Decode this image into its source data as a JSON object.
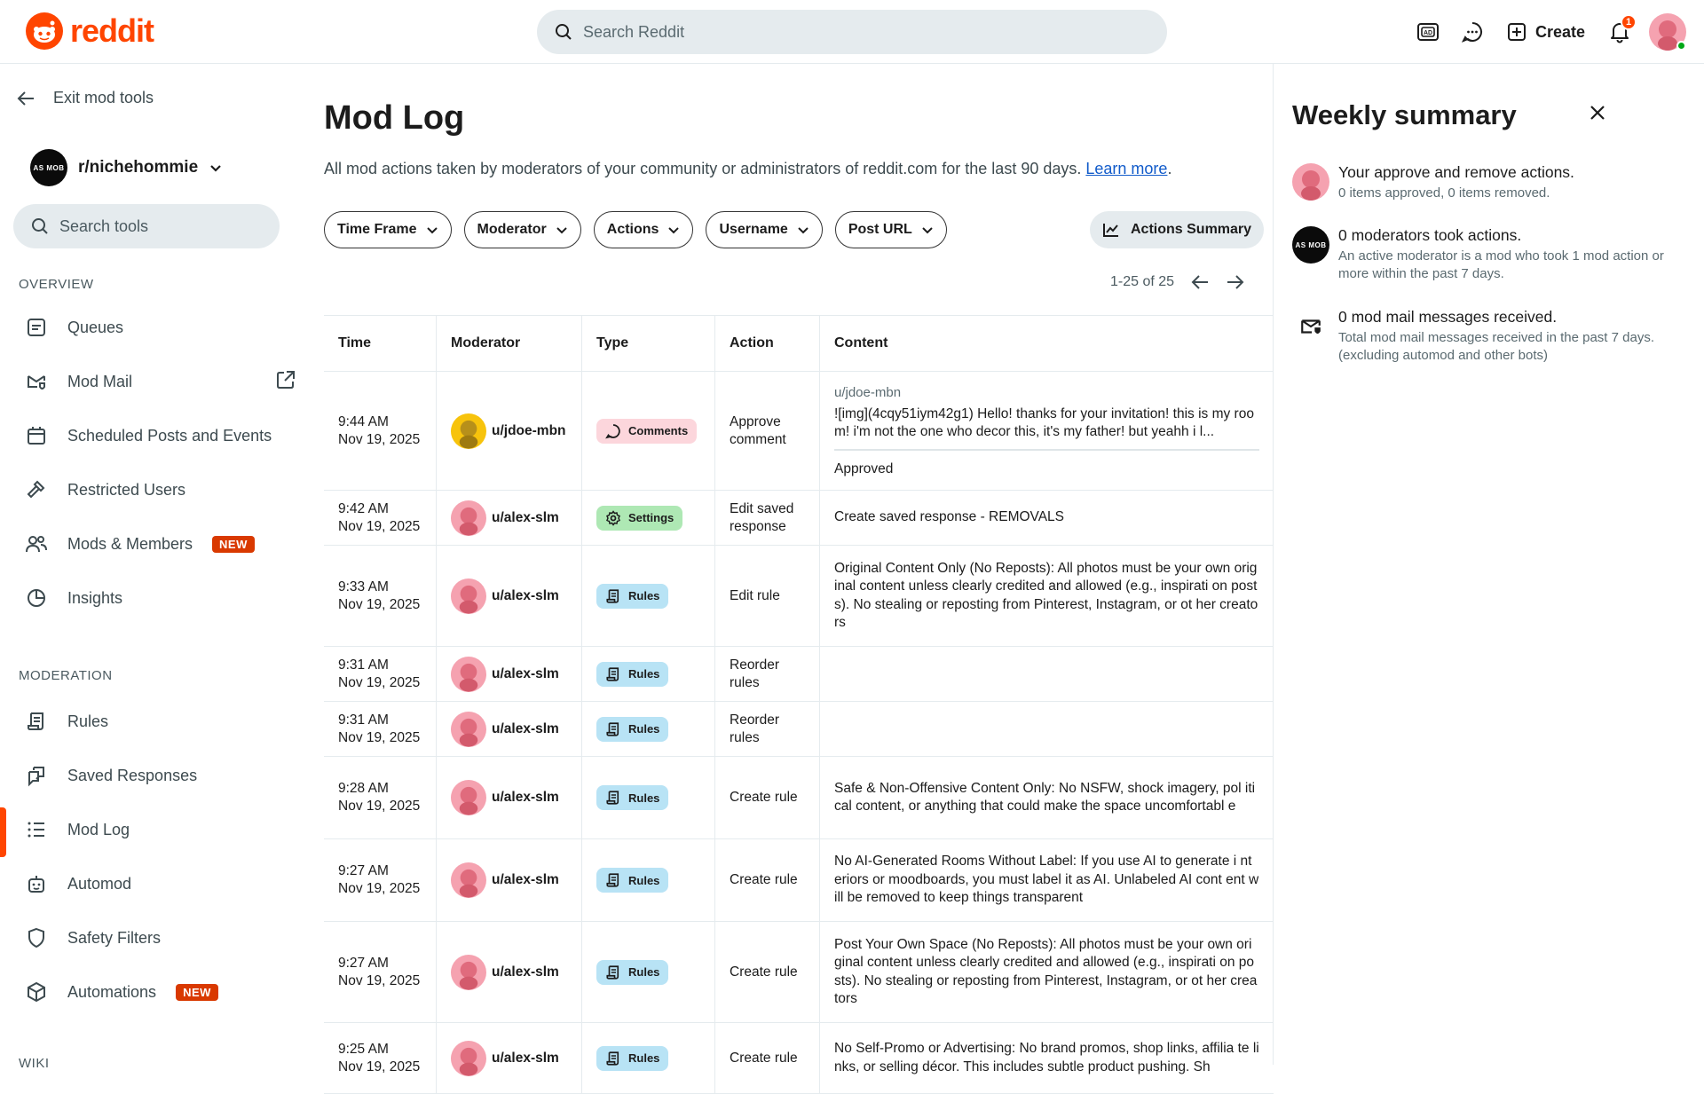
{
  "header": {
    "logo_text": "reddit",
    "search_placeholder": "Search Reddit",
    "create_label": "Create",
    "notification_count": "1",
    "brand_color": "#ff4500"
  },
  "sidebar": {
    "exit_label": "Exit mod tools",
    "community_name": "r/nichehommie",
    "community_avatar_text": "AS MOB",
    "search_placeholder": "Search tools",
    "overview_label": "OVERVIEW",
    "moderation_label": "MODERATION",
    "wiki_label": "WIKI",
    "overview_items": [
      {
        "label": "Queues",
        "icon": "queue-icon"
      },
      {
        "label": "Mod Mail",
        "icon": "mod-mail-icon"
      },
      {
        "label": "Scheduled Posts and Events",
        "icon": "calendar-icon"
      },
      {
        "label": "Restricted Users",
        "icon": "hammer-icon"
      },
      {
        "label": "Mods & Members",
        "icon": "members-icon",
        "badge": "NEW"
      },
      {
        "label": "Insights",
        "icon": "insights-icon"
      }
    ],
    "moderation_items": [
      {
        "label": "Rules",
        "icon": "rules-icon"
      },
      {
        "label": "Saved Responses",
        "icon": "saved-responses-icon"
      },
      {
        "label": "Mod Log",
        "icon": "list-icon",
        "active": true
      },
      {
        "label": "Automod",
        "icon": "robot-icon"
      },
      {
        "label": "Safety Filters",
        "icon": "shield-icon"
      },
      {
        "label": "Automations",
        "icon": "cube-icon",
        "badge": "NEW"
      }
    ]
  },
  "main": {
    "title": "Mod Log",
    "description": "All mod actions taken by moderators of your community or administrators of reddit.com for the last 90 days.",
    "learn_more": "Learn more",
    "description_end": ".",
    "filters": [
      "Time Frame",
      "Moderator",
      "Actions",
      "Username",
      "Post URL"
    ],
    "summary_button": "Actions Summary",
    "pager_text": "1-25 of 25",
    "columns": [
      "Time",
      "Moderator",
      "Type",
      "Action",
      "Content"
    ],
    "rows": [
      {
        "time": "9:44 AM",
        "date": "Nov 19, 2025",
        "moderator": "u/jdoe-mbn",
        "type": "Comments",
        "action": "Approve comment",
        "content_user": "u/jdoe-mbn",
        "content": "![img](4cqy51iym42g1) Hello! thanks for your invitation! this is my room! i'm not the one who decor this, it's my father! but yeahh i l...",
        "status": "Approved"
      },
      {
        "time": "9:42 AM",
        "date": "Nov 19, 2025",
        "moderator": "u/alex-slm",
        "type": "Settings",
        "action": "Edit saved response",
        "content": "Create saved response - REMOVALS"
      },
      {
        "time": "9:33 AM",
        "date": "Nov 19, 2025",
        "moderator": "u/alex-slm",
        "type": "Rules",
        "action": "Edit rule",
        "content": "Original Content Only (No Reposts): All photos must be your own original content unless clearly credited and allowed (e.g., inspirati on posts). No stealing or reposting from Pinterest, Instagram, or ot her creators"
      },
      {
        "time": "9:31 AM",
        "date": "Nov 19, 2025",
        "moderator": "u/alex-slm",
        "type": "Rules",
        "action": "Reorder rules",
        "content": ""
      },
      {
        "time": "9:31 AM",
        "date": "Nov 19, 2025",
        "moderator": "u/alex-slm",
        "type": "Rules",
        "action": "Reorder rules",
        "content": ""
      },
      {
        "time": "9:28 AM",
        "date": "Nov 19, 2025",
        "moderator": "u/alex-slm",
        "type": "Rules",
        "action": "Create rule",
        "content": "Safe & Non-Offensive Content Only: No NSFW, shock imagery, pol itical content, or anything that could make the space uncomfortabl e"
      },
      {
        "time": "9:27 AM",
        "date": "Nov 19, 2025",
        "moderator": "u/alex-slm",
        "type": "Rules",
        "action": "Create rule",
        "content": "No AI-Generated Rooms Without Label: If you use AI to generate i nteriors or moodboards, you must label it as AI. Unlabeled AI cont ent will be removed to keep things transparent"
      },
      {
        "time": "9:27 AM",
        "date": "Nov 19, 2025",
        "moderator": "u/alex-slm",
        "type": "Rules",
        "action": "Create rule",
        "content": "Post Your Own Space (No Reposts): All photos must be your own original content unless clearly credited and allowed (e.g., inspirati on posts). No stealing or reposting from Pinterest, Instagram, or ot her creators"
      },
      {
        "time": "9:25 AM",
        "date": "Nov 19, 2025",
        "moderator": "u/alex-slm",
        "type": "Rules",
        "action": "Create rule",
        "content": "No Self-Promo or Advertising: No brand promos, shop links, affilia te links, or selling décor. This includes subtle product pushing. Sh"
      }
    ]
  },
  "weekly": {
    "title": "Weekly summary",
    "items": [
      {
        "head": "Your approve and remove actions.",
        "sub": "0 items approved, 0 items removed."
      },
      {
        "head": "0 moderators took actions.",
        "sub": "An active moderator is a mod who took 1 mod action or more within the past 7 days."
      },
      {
        "head": "0 mod mail messages received.",
        "sub": "Total mod mail messages received in the past 7 days. (excluding automod and other bots)"
      }
    ]
  },
  "colors": {
    "comments_pill": "#fcd6dc",
    "settings_pill": "#aee8b4",
    "rules_pill": "#b8e3f5",
    "new_badge": "#d93900",
    "link": "#115bca"
  }
}
